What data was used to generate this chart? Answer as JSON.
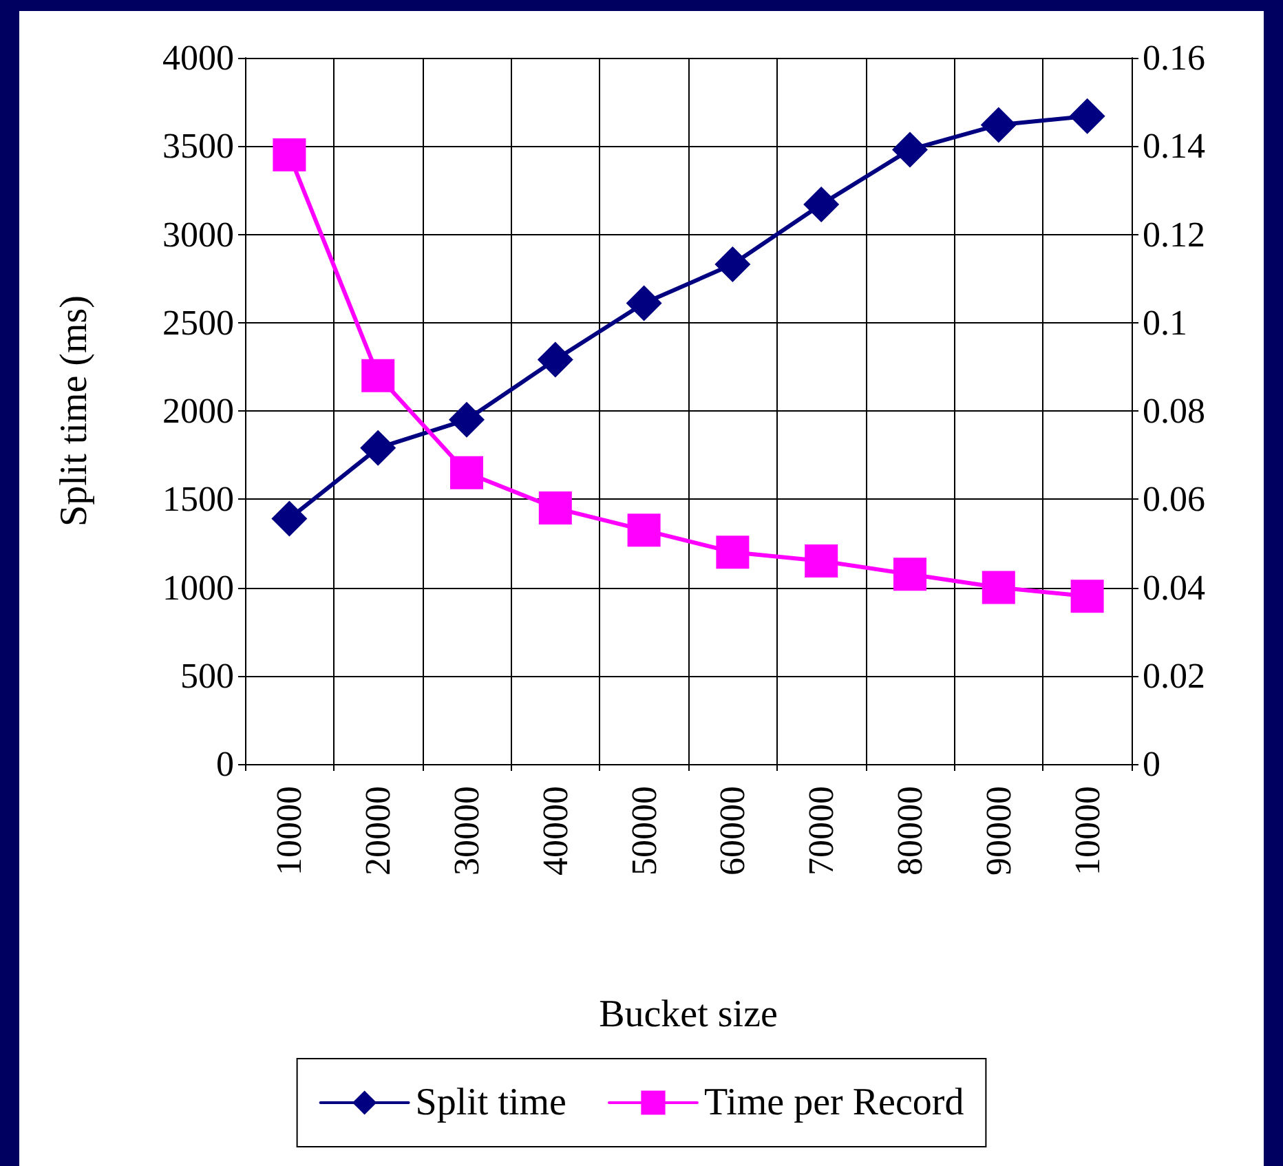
{
  "chart_data": {
    "type": "line",
    "xlabel": "Bucket size",
    "ylabel": "Split time (ms)",
    "categories": [
      "10000",
      "20000",
      "30000",
      "40000",
      "50000",
      "60000",
      "70000",
      "80000",
      "90000",
      "10000"
    ],
    "series": [
      {
        "name": "Split time",
        "color": "#000080",
        "marker": "diamond",
        "values": [
          1390,
          1790,
          1950,
          2290,
          2610,
          2830,
          3170,
          3480,
          3620,
          3670
        ]
      },
      {
        "name": "Time per Record",
        "color": "#ff00ff",
        "marker": "square",
        "axis": "y2",
        "values": [
          0.138,
          0.088,
          0.066,
          0.058,
          0.053,
          0.048,
          0.046,
          0.043,
          0.04,
          0.038
        ]
      }
    ],
    "ylim": [
      0,
      4000
    ],
    "yticks": [
      0,
      500,
      1000,
      1500,
      2000,
      2500,
      3000,
      3500,
      4000
    ],
    "y2lim": [
      0,
      0.16
    ],
    "y2ticks": [
      0,
      0.02,
      0.04,
      0.06,
      0.08,
      0.1,
      0.12,
      0.14,
      0.16
    ],
    "grid": true,
    "legend": "bottom",
    "line_style": "solid"
  }
}
